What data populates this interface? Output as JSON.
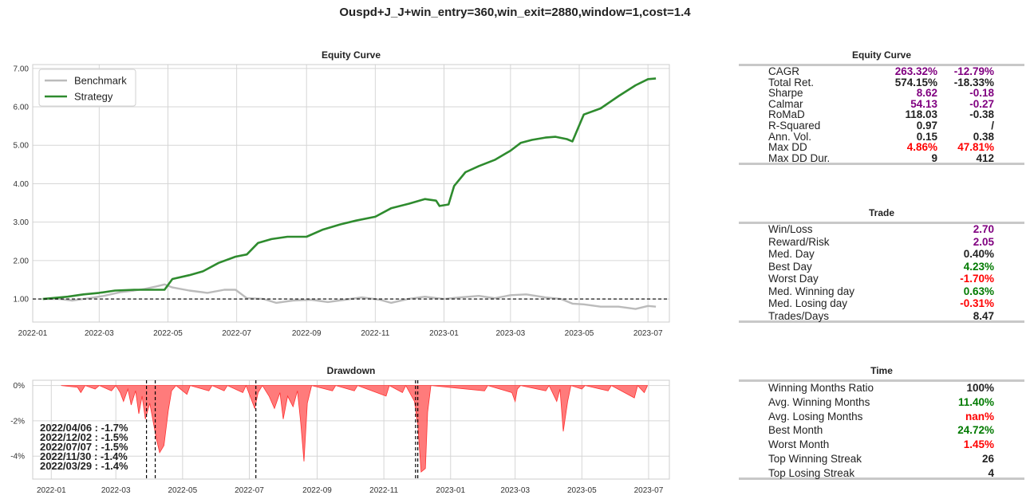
{
  "suptitle": "Ouspd+J_J+win_entry=360,win_exit=2880,window=1,cost=1.4",
  "colors": {
    "strategy": "#2e8b2e",
    "benchmark": "#bbbbbb",
    "drawdown": "#ff5a5a",
    "purple": "#800080",
    "green": "#007a00",
    "red": "#ff0000",
    "dark": "#222222"
  },
  "chart_data": [
    {
      "type": "line",
      "title": "Equity Curve",
      "ylim": [
        0.4,
        7.1
      ],
      "y_ticks": [
        "1.00",
        "2.00",
        "3.00",
        "4.00",
        "5.00",
        "6.00",
        "7.00"
      ],
      "x_ticks": [
        "2022-01",
        "2022-03",
        "2022-05",
        "2022-07",
        "2022-09",
        "2022-11",
        "2023-01",
        "2023-03",
        "2023-05",
        "2023-07"
      ],
      "x_range": [
        "2022-01-01",
        "2023-07-20"
      ],
      "legend": "top-left",
      "grid": true,
      "reference_line": 1.0,
      "series": [
        {
          "name": "Benchmark",
          "color": "#bbbbbb",
          "points": [
            [
              "2022-01-10",
              1.0
            ],
            [
              "2022-01-25",
              1.0
            ],
            [
              "2022-02-05",
              0.96
            ],
            [
              "2022-02-20",
              1.02
            ],
            [
              "2022-03-05",
              1.08
            ],
            [
              "2022-03-20",
              1.18
            ],
            [
              "2022-04-01",
              1.22
            ],
            [
              "2022-04-10",
              1.26
            ],
            [
              "2022-04-20",
              1.32
            ],
            [
              "2022-04-28",
              1.38
            ],
            [
              "2022-05-05",
              1.3
            ],
            [
              "2022-05-20",
              1.22
            ],
            [
              "2022-06-05",
              1.16
            ],
            [
              "2022-06-20",
              1.24
            ],
            [
              "2022-06-30",
              1.24
            ],
            [
              "2022-07-10",
              1.02
            ],
            [
              "2022-07-25",
              1.0
            ],
            [
              "2022-08-05",
              0.9
            ],
            [
              "2022-08-20",
              0.96
            ],
            [
              "2022-09-05",
              0.98
            ],
            [
              "2022-09-20",
              0.92
            ],
            [
              "2022-10-05",
              0.98
            ],
            [
              "2022-10-20",
              1.04
            ],
            [
              "2022-11-05",
              0.98
            ],
            [
              "2022-11-15",
              0.9
            ],
            [
              "2022-11-30",
              1.0
            ],
            [
              "2022-12-15",
              1.06
            ],
            [
              "2023-01-01",
              1.0
            ],
            [
              "2023-01-15",
              1.04
            ],
            [
              "2023-02-01",
              1.08
            ],
            [
              "2023-02-15",
              1.02
            ],
            [
              "2023-03-01",
              1.1
            ],
            [
              "2023-03-15",
              1.12
            ],
            [
              "2023-04-01",
              1.04
            ],
            [
              "2023-04-15",
              1.0
            ],
            [
              "2023-04-25",
              0.88
            ],
            [
              "2023-05-05",
              0.86
            ],
            [
              "2023-05-20",
              0.8
            ],
            [
              "2023-06-05",
              0.8
            ],
            [
              "2023-06-20",
              0.74
            ],
            [
              "2023-07-01",
              0.82
            ],
            [
              "2023-07-08",
              0.8
            ]
          ]
        },
        {
          "name": "Strategy",
          "color": "#2e8b2e",
          "points": [
            [
              "2022-01-10",
              1.0
            ],
            [
              "2022-02-01",
              1.06
            ],
            [
              "2022-02-15",
              1.12
            ],
            [
              "2022-03-01",
              1.16
            ],
            [
              "2022-03-15",
              1.22
            ],
            [
              "2022-04-01",
              1.24
            ],
            [
              "2022-04-15",
              1.24
            ],
            [
              "2022-04-28",
              1.24
            ],
            [
              "2022-05-05",
              1.52
            ],
            [
              "2022-05-20",
              1.62
            ],
            [
              "2022-06-01",
              1.72
            ],
            [
              "2022-06-15",
              1.94
            ],
            [
              "2022-06-30",
              2.1
            ],
            [
              "2022-07-10",
              2.16
            ],
            [
              "2022-07-20",
              2.46
            ],
            [
              "2022-08-01",
              2.56
            ],
            [
              "2022-08-15",
              2.62
            ],
            [
              "2022-09-01",
              2.62
            ],
            [
              "2022-09-15",
              2.8
            ],
            [
              "2022-10-01",
              2.94
            ],
            [
              "2022-10-15",
              3.04
            ],
            [
              "2022-11-01",
              3.14
            ],
            [
              "2022-11-15",
              3.36
            ],
            [
              "2022-12-01",
              3.48
            ],
            [
              "2022-12-15",
              3.6
            ],
            [
              "2022-12-25",
              3.56
            ],
            [
              "2022-12-28",
              3.42
            ],
            [
              "2023-01-05",
              3.46
            ],
            [
              "2023-01-10",
              3.94
            ],
            [
              "2023-01-20",
              4.3
            ],
            [
              "2023-02-01",
              4.46
            ],
            [
              "2023-02-15",
              4.62
            ],
            [
              "2023-03-01",
              4.86
            ],
            [
              "2023-03-10",
              5.06
            ],
            [
              "2023-03-20",
              5.14
            ],
            [
              "2023-04-01",
              5.2
            ],
            [
              "2023-04-10",
              5.22
            ],
            [
              "2023-04-20",
              5.16
            ],
            [
              "2023-04-25",
              5.1
            ],
            [
              "2023-05-05",
              5.8
            ],
            [
              "2023-05-20",
              5.96
            ],
            [
              "2023-06-05",
              6.28
            ],
            [
              "2023-06-20",
              6.56
            ],
            [
              "2023-07-01",
              6.72
            ],
            [
              "2023-07-08",
              6.74
            ]
          ]
        }
      ]
    },
    {
      "type": "area",
      "title": "Drawdown",
      "ylim": [
        -5.3,
        0.3
      ],
      "y_ticks": [
        "0%",
        "-2%",
        "-4%"
      ],
      "x_ticks": [
        "2022-01",
        "2022-03",
        "2022-05",
        "2022-07",
        "2022-09",
        "2022-11",
        "2023-01",
        "2023-03",
        "2023-05",
        "2023-07"
      ],
      "x_range": [
        "2021-12-15",
        "2023-07-20"
      ],
      "grid": true,
      "series": [
        {
          "name": "Drawdown",
          "color": "#ff5a5a",
          "points": [
            [
              "2022-01-10",
              0
            ],
            [
              "2022-01-25",
              -0.1
            ],
            [
              "2022-01-28",
              -0.4
            ],
            [
              "2022-02-01",
              0
            ],
            [
              "2022-02-10",
              -0.2
            ],
            [
              "2022-02-14",
              0
            ],
            [
              "2022-02-25",
              -0.3
            ],
            [
              "2022-03-01",
              0
            ],
            [
              "2022-03-05",
              -0.4
            ],
            [
              "2022-03-08",
              -0.9
            ],
            [
              "2022-03-12",
              -0.2
            ],
            [
              "2022-03-15",
              -1.1
            ],
            [
              "2022-03-19",
              -0.3
            ],
            [
              "2022-03-22",
              -1.6
            ],
            [
              "2022-03-25",
              -0.6
            ],
            [
              "2022-03-28",
              -1.9
            ],
            [
              "2022-04-01",
              -1.0
            ],
            [
              "2022-04-04",
              -2.0
            ],
            [
              "2022-04-07",
              -3.0
            ],
            [
              "2022-04-10",
              -3.8
            ],
            [
              "2022-04-14",
              -3.4
            ],
            [
              "2022-04-18",
              -1.4
            ],
            [
              "2022-04-21",
              -0.3
            ],
            [
              "2022-04-25",
              0
            ],
            [
              "2022-05-05",
              -0.5
            ],
            [
              "2022-05-08",
              0
            ],
            [
              "2022-05-25",
              -0.3
            ],
            [
              "2022-05-28",
              0
            ],
            [
              "2022-06-08",
              -0.3
            ],
            [
              "2022-06-11",
              0
            ],
            [
              "2022-06-25",
              -0.4
            ],
            [
              "2022-06-28",
              0
            ],
            [
              "2022-07-06",
              -1.3
            ],
            [
              "2022-07-09",
              -0.4
            ],
            [
              "2022-07-13",
              0
            ],
            [
              "2022-07-19",
              -0.6
            ],
            [
              "2022-07-24",
              -1.3
            ],
            [
              "2022-07-29",
              -0.4
            ],
            [
              "2022-08-01",
              -1.9
            ],
            [
              "2022-08-05",
              -0.6
            ],
            [
              "2022-08-10",
              -1.2
            ],
            [
              "2022-08-14",
              -0.3
            ],
            [
              "2022-08-17",
              -2.1
            ],
            [
              "2022-08-20",
              -4.3
            ],
            [
              "2022-08-23",
              -1.0
            ],
            [
              "2022-08-27",
              0
            ],
            [
              "2022-09-15",
              -0.3
            ],
            [
              "2022-09-18",
              0
            ],
            [
              "2022-10-05",
              -0.3
            ],
            [
              "2022-10-08",
              0
            ],
            [
              "2022-11-03",
              -0.6
            ],
            [
              "2022-11-06",
              0
            ],
            [
              "2022-11-18",
              -0.4
            ],
            [
              "2022-11-21",
              0
            ],
            [
              "2022-11-29",
              -0.9
            ],
            [
              "2022-12-02",
              -2.2
            ],
            [
              "2022-12-05",
              -4.9
            ],
            [
              "2022-12-09",
              -4.7
            ],
            [
              "2022-12-11",
              -1.5
            ],
            [
              "2022-12-14",
              0
            ],
            [
              "2023-02-01",
              -0.3
            ],
            [
              "2023-02-04",
              0
            ],
            [
              "2023-02-26",
              -0.4
            ],
            [
              "2023-03-01",
              -0.9
            ],
            [
              "2023-03-03",
              -0.2
            ],
            [
              "2023-03-06",
              0
            ],
            [
              "2023-03-29",
              -0.3
            ],
            [
              "2023-04-01",
              0
            ],
            [
              "2023-04-08",
              -0.9
            ],
            [
              "2023-04-11",
              -0.2
            ],
            [
              "2023-04-14",
              -2.6
            ],
            [
              "2023-04-18",
              -0.9
            ],
            [
              "2023-04-21",
              0
            ],
            [
              "2023-05-01",
              -0.2
            ],
            [
              "2023-05-04",
              0
            ],
            [
              "2023-05-25",
              -0.3
            ],
            [
              "2023-05-28",
              0
            ],
            [
              "2023-06-18",
              -0.7
            ],
            [
              "2023-06-21",
              0
            ],
            [
              "2023-06-27",
              -0.4
            ],
            [
              "2023-06-30",
              0
            ]
          ]
        }
      ],
      "top_drawdowns": [
        "2022/04/06 : -1.7%",
        "2022/12/02 : -1.5%",
        "2022/07/07 : -1.5%",
        "2022/11/30 : -1.4%",
        "2022/03/29 : -1.4%"
      ],
      "vlines": [
        "2022-03-29",
        "2022-04-06",
        "2022-07-07",
        "2022-11-30",
        "2022-12-02"
      ]
    }
  ],
  "tables": {
    "equity": {
      "title": "Equity Curve",
      "rows": [
        {
          "label": "CAGR",
          "v1": "263.32%",
          "c1": "purple",
          "v2": "-12.79%",
          "c2": "purple"
        },
        {
          "label": "Total Ret.",
          "v1": "574.15%",
          "c1": "dark",
          "v2": "-18.33%",
          "c2": "dark"
        },
        {
          "label": "Sharpe",
          "v1": "8.62",
          "c1": "purple",
          "v2": "-0.18",
          "c2": "purple"
        },
        {
          "label": "Calmar",
          "v1": "54.13",
          "c1": "purple",
          "v2": "-0.27",
          "c2": "purple"
        },
        {
          "label": "RoMaD",
          "v1": "118.03",
          "c1": "dark",
          "v2": "-0.38",
          "c2": "dark"
        },
        {
          "label": "R-Squared",
          "v1": "0.97",
          "c1": "dark",
          "v2": "/",
          "c2": "dark"
        },
        {
          "label": "Ann. Vol.",
          "v1": "0.15",
          "c1": "dark",
          "v2": "0.38",
          "c2": "dark"
        },
        {
          "label": "Max DD",
          "v1": "4.86%",
          "c1": "red",
          "v2": "47.81%",
          "c2": "red"
        },
        {
          "label": "Max DD Dur.",
          "v1": "9",
          "c1": "dark",
          "v2": "412",
          "c2": "dark"
        }
      ]
    },
    "trade": {
      "title": "Trade",
      "rows": [
        {
          "label": "Win/Loss",
          "v": "2.70",
          "c": "purple"
        },
        {
          "label": "Reward/Risk",
          "v": "2.05",
          "c": "purple"
        },
        {
          "label": "Med. Day",
          "v": "0.40%",
          "c": "dark"
        },
        {
          "label": "Best Day",
          "v": "4.23%",
          "c": "green"
        },
        {
          "label": "Worst Day",
          "v": "-1.70%",
          "c": "red"
        },
        {
          "label": "Med. Winning day",
          "v": "0.63%",
          "c": "green"
        },
        {
          "label": "Med. Losing day",
          "v": "-0.31%",
          "c": "red"
        },
        {
          "label": "Trades/Days",
          "v": "8.47",
          "c": "dark"
        }
      ]
    },
    "time": {
      "title": "Time",
      "rows": [
        {
          "label": "Winning Months Ratio",
          "v": "100%",
          "c": "dark"
        },
        {
          "label": "Avg. Winning Months",
          "v": "11.40%",
          "c": "green"
        },
        {
          "label": "Avg. Losing Months",
          "v": "nan%",
          "c": "red"
        },
        {
          "label": "Best Month",
          "v": "24.72%",
          "c": "green"
        },
        {
          "label": "Worst Month",
          "v": "1.45%",
          "c": "red"
        },
        {
          "label": "Top Winning Streak",
          "v": "26",
          "c": "dark"
        },
        {
          "label": "Top Losing Streak",
          "v": "4",
          "c": "dark"
        }
      ]
    }
  }
}
